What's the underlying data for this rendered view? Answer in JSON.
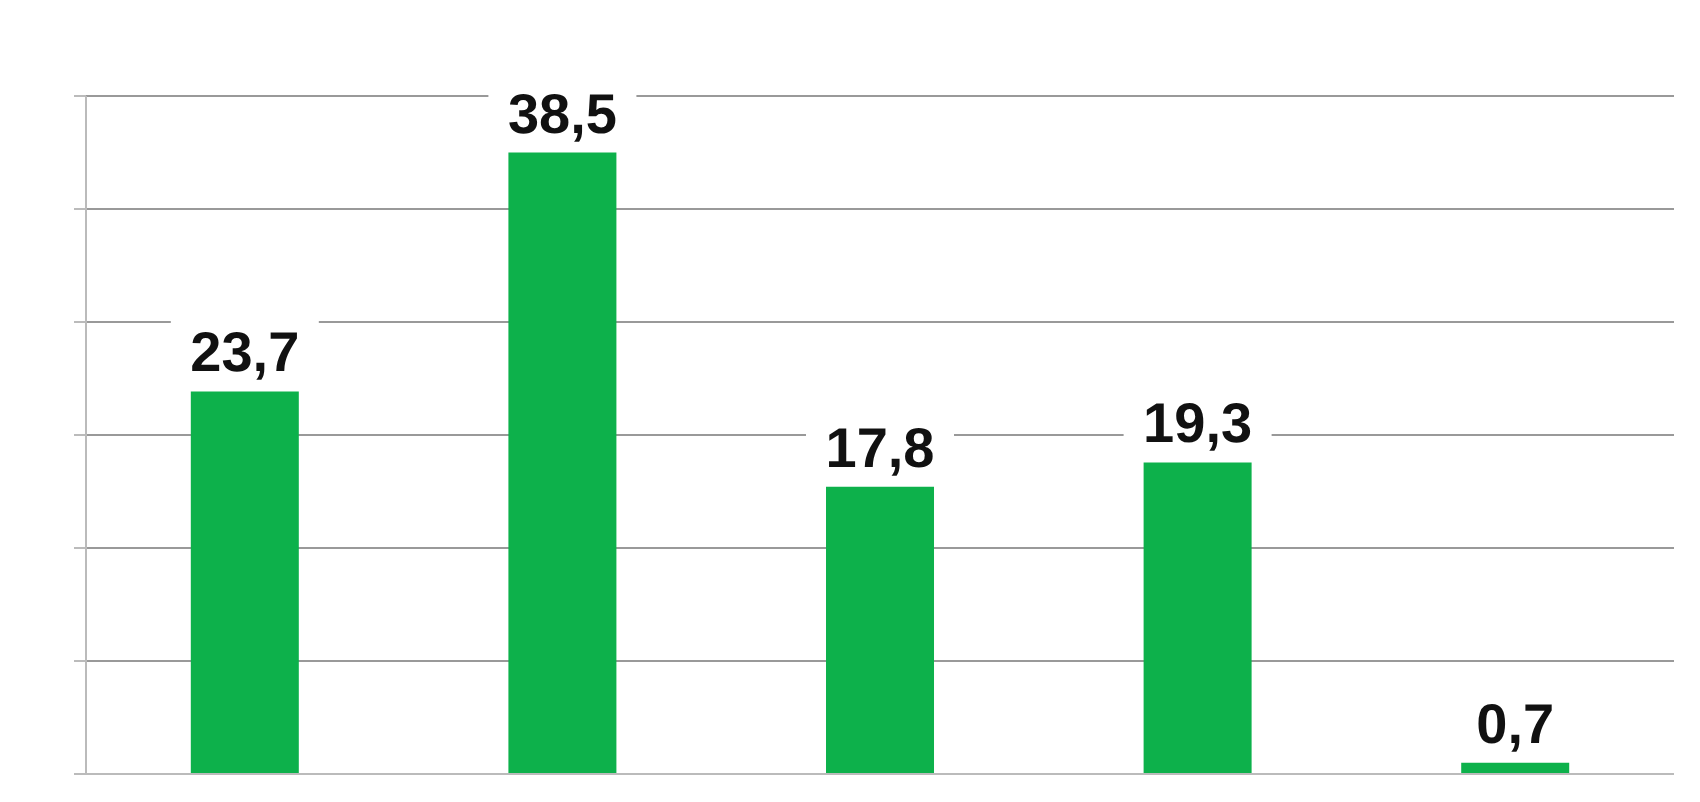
{
  "chart_data": {
    "type": "bar",
    "categories": [
      null,
      null,
      null,
      null,
      null
    ],
    "values": [
      23.7,
      38.5,
      17.8,
      19.3,
      0.7
    ],
    "value_labels": [
      "23,7",
      "38,5",
      "17,8",
      "19,3",
      "0,7"
    ],
    "color": "#0db14b",
    "grid": "y",
    "tick_labels": false
  }
}
